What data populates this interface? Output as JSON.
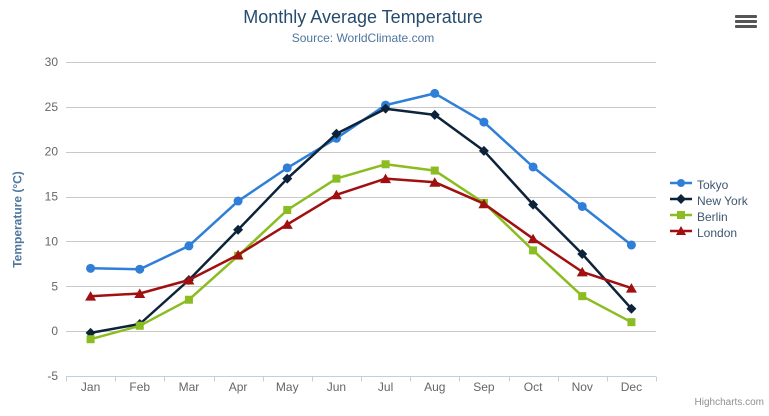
{
  "header": {
    "title": "Monthly Average Temperature",
    "subtitle": "Source: WorldClimate.com"
  },
  "toolbar": {
    "context_menu_icon": "hamburger-icon"
  },
  "chart_data": {
    "type": "line",
    "title": "Monthly Average Temperature",
    "subtitle": "Source: WorldClimate.com",
    "categories": [
      "Jan",
      "Feb",
      "Mar",
      "Apr",
      "May",
      "Jun",
      "Jul",
      "Aug",
      "Sep",
      "Oct",
      "Nov",
      "Dec"
    ],
    "xlabel": "",
    "ylabel": "Temperature (°C)",
    "ylim": [
      -5,
      30
    ],
    "yticks": [
      -5,
      0,
      5,
      10,
      15,
      20,
      25,
      30
    ],
    "grid": true,
    "legend_position": "right",
    "series": [
      {
        "name": "Tokyo",
        "color": "#2f7ed8",
        "marker": "circle",
        "values": [
          7.0,
          6.9,
          9.5,
          14.5,
          18.2,
          21.5,
          25.2,
          26.5,
          23.3,
          18.3,
          13.9,
          9.6
        ]
      },
      {
        "name": "New York",
        "color": "#0d233a",
        "marker": "diamond",
        "values": [
          -0.2,
          0.8,
          5.7,
          11.3,
          17.0,
          22.0,
          24.8,
          24.1,
          20.1,
          14.1,
          8.6,
          2.5
        ]
      },
      {
        "name": "Berlin",
        "color": "#8bbc21",
        "marker": "square",
        "values": [
          -0.9,
          0.6,
          3.5,
          8.4,
          13.5,
          17.0,
          18.6,
          17.9,
          14.3,
          9.0,
          3.9,
          1.0
        ]
      },
      {
        "name": "London",
        "color": "#a01010",
        "marker": "triangle",
        "values": [
          3.9,
          4.2,
          5.7,
          8.5,
          11.9,
          15.2,
          17.0,
          16.6,
          14.2,
          10.3,
          6.6,
          4.8
        ]
      }
    ],
    "style": {
      "grid_color": "#c8c8c8",
      "axis_line_color": "#c0d0e0",
      "axis_label_color": "#666666"
    }
  },
  "credits": {
    "text": "Highcharts.com"
  }
}
